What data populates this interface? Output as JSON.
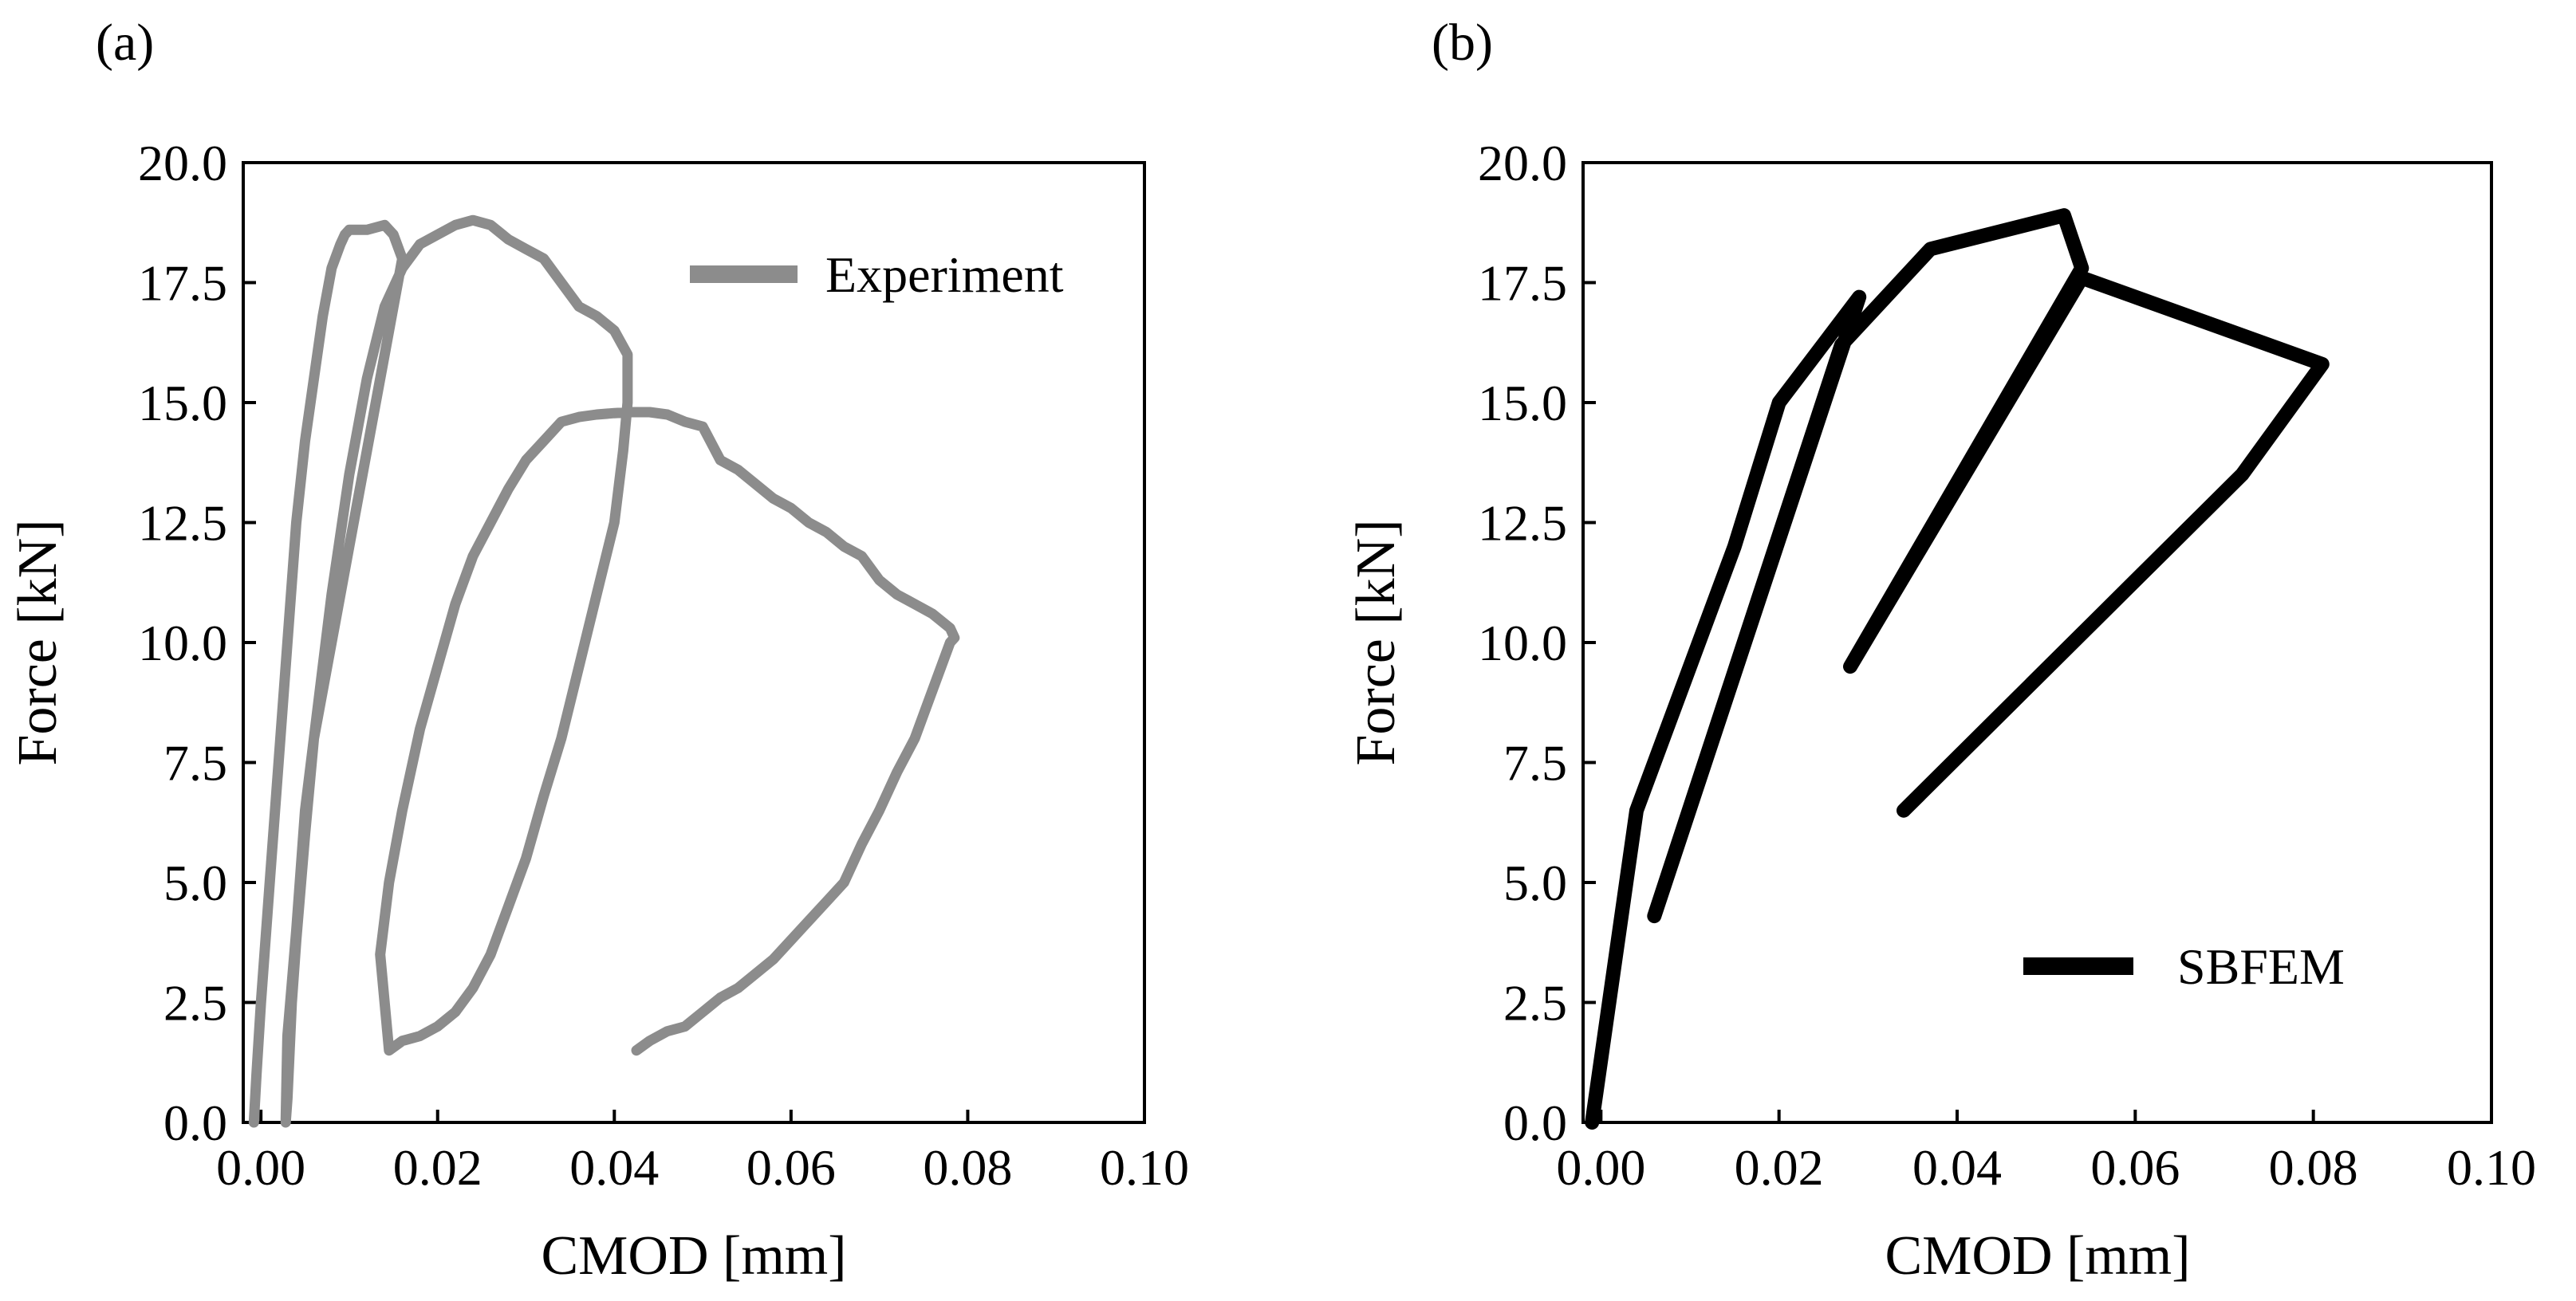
{
  "chart_data": [
    {
      "type": "line",
      "panel_label": "(a)",
      "xlabel": "CMOD [mm]",
      "ylabel": "Force [kN]",
      "xlim": [
        -0.002,
        0.1
      ],
      "ylim": [
        0.0,
        20.0
      ],
      "xticks": [
        0.0,
        0.02,
        0.04,
        0.06,
        0.08,
        0.1
      ],
      "xtick_labels": [
        "0.00",
        "0.02",
        "0.04",
        "0.06",
        "0.08",
        "0.10"
      ],
      "yticks": [
        0.0,
        2.5,
        5.0,
        7.5,
        10.0,
        12.5,
        15.0,
        17.5,
        20.0
      ],
      "ytick_labels": [
        "0.0",
        "2.5",
        "5.0",
        "7.5",
        "10.0",
        "12.5",
        "15.0",
        "17.5",
        "20.0"
      ],
      "grid": false,
      "legend_position": "top-right",
      "series": [
        {
          "name": "Experiment",
          "color": "#8c8c8c",
          "x": [
            -0.0008,
            -0.0005,
            0.0,
            0.001,
            0.002,
            0.003,
            0.004,
            0.005,
            0.006,
            0.007,
            0.008,
            0.009,
            0.0095,
            0.01,
            0.012,
            0.014,
            0.015,
            0.016,
            0.014,
            0.012,
            0.01,
            0.008,
            0.006,
            0.005,
            0.004,
            0.003,
            0.0028,
            0.003,
            0.0035,
            0.004,
            0.005,
            0.006,
            0.008,
            0.01,
            0.012,
            0.014,
            0.016,
            0.018,
            0.02,
            0.022,
            0.024,
            0.026,
            0.028,
            0.03,
            0.032,
            0.034,
            0.036,
            0.038,
            0.04,
            0.0415,
            0.0415,
            0.041,
            0.04,
            0.038,
            0.036,
            0.034,
            0.032,
            0.03,
            0.028,
            0.026,
            0.024,
            0.022,
            0.02,
            0.018,
            0.016,
            0.0145,
            0.0135,
            0.0145,
            0.016,
            0.018,
            0.02,
            0.022,
            0.024,
            0.026,
            0.028,
            0.03,
            0.032,
            0.034,
            0.036,
            0.038,
            0.04,
            0.042,
            0.044,
            0.046,
            0.048,
            0.05,
            0.052,
            0.054,
            0.056,
            0.058,
            0.06,
            0.062,
            0.064,
            0.066,
            0.068,
            0.07,
            0.072,
            0.074,
            0.076,
            0.078,
            0.0785,
            0.078,
            0.076,
            0.074,
            0.072,
            0.07,
            0.068,
            0.066,
            0.064,
            0.062,
            0.06,
            0.058,
            0.056,
            0.054,
            0.052,
            0.05,
            0.048,
            0.046,
            0.044,
            0.0425
          ],
          "y": [
            0.0,
            1.0,
            2.5,
            5.0,
            7.5,
            10.0,
            12.5,
            14.2,
            15.5,
            16.8,
            17.8,
            18.3,
            18.5,
            18.6,
            18.6,
            18.7,
            18.5,
            18.0,
            16.0,
            14.0,
            12.0,
            10.0,
            8.0,
            6.5,
            4.0,
            1.8,
            0.0,
            0.5,
            2.5,
            3.8,
            6.0,
            8.0,
            11.0,
            13.5,
            15.5,
            17.0,
            17.8,
            18.3,
            18.5,
            18.7,
            18.8,
            18.7,
            18.4,
            18.2,
            18.0,
            17.5,
            17.0,
            16.8,
            16.5,
            16.0,
            15.0,
            14.0,
            12.5,
            11.0,
            9.5,
            8.0,
            6.8,
            5.5,
            4.5,
            3.5,
            2.8,
            2.3,
            2.0,
            1.8,
            1.7,
            1.5,
            3.5,
            5.0,
            6.5,
            8.2,
            9.5,
            10.8,
            11.8,
            12.5,
            13.2,
            13.8,
            14.2,
            14.6,
            14.7,
            14.75,
            14.78,
            14.8,
            14.8,
            14.75,
            14.6,
            14.5,
            13.8,
            13.6,
            13.3,
            13.0,
            12.8,
            12.5,
            12.3,
            12.0,
            11.8,
            11.3,
            11.0,
            10.8,
            10.6,
            10.3,
            10.1,
            10.0,
            9.0,
            8.0,
            7.3,
            6.5,
            5.8,
            5.0,
            4.6,
            4.2,
            3.8,
            3.4,
            3.1,
            2.8,
            2.6,
            2.3,
            2.0,
            1.9,
            1.7,
            1.5
          ]
        }
      ]
    },
    {
      "type": "line",
      "panel_label": "(b)",
      "xlabel": "CMOD [mm]",
      "ylabel": "Force [kN]",
      "xlim": [
        -0.002,
        0.1
      ],
      "ylim": [
        0.0,
        20.0
      ],
      "xticks": [
        0.0,
        0.02,
        0.04,
        0.06,
        0.08,
        0.1
      ],
      "xtick_labels": [
        "0.00",
        "0.02",
        "0.04",
        "0.06",
        "0.08",
        "0.10"
      ],
      "yticks": [
        0.0,
        2.5,
        5.0,
        7.5,
        10.0,
        12.5,
        15.0,
        17.5,
        20.0
      ],
      "ytick_labels": [
        "0.0",
        "2.5",
        "5.0",
        "7.5",
        "10.0",
        "12.5",
        "15.0",
        "17.5",
        "20.0"
      ],
      "grid": false,
      "legend_position": "bottom-right",
      "series": [
        {
          "name": "SBFEM",
          "color": "#000000",
          "x": [
            -0.001,
            0.004,
            0.01,
            0.015,
            0.02,
            0.029,
            0.006,
            0.027,
            0.037,
            0.052,
            0.054,
            0.028,
            0.054,
            0.081,
            0.072,
            0.034
          ],
          "y": [
            0.0,
            6.5,
            9.5,
            12.0,
            15.0,
            17.2,
            4.3,
            16.2,
            18.2,
            18.9,
            17.8,
            9.5,
            17.6,
            15.8,
            13.5,
            6.5
          ]
        }
      ]
    }
  ]
}
